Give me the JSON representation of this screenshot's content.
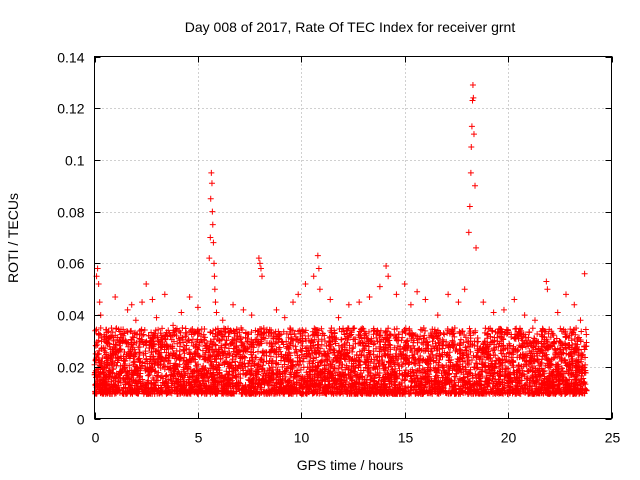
{
  "chart_data": {
    "type": "scatter",
    "title": "Day 008 of 2017, Rate Of TEC Index for receiver grnt",
    "xlabel": "GPS time / hours",
    "ylabel": "ROTI / TECUs",
    "xlim": [
      0,
      25
    ],
    "ylim": [
      0,
      0.14
    ],
    "xticks": [
      0,
      5,
      10,
      15,
      20,
      25
    ],
    "yticks": [
      0,
      0.02,
      0.04,
      0.06,
      0.08,
      0.1,
      0.12,
      0.14
    ],
    "xtick_labels": [
      "0",
      "5",
      "10",
      "15",
      "20",
      "25"
    ],
    "ytick_labels": [
      "0",
      "0.02",
      "0.04",
      "0.06",
      "0.08",
      "0.1",
      "0.12",
      "0.14"
    ],
    "grid": true,
    "marker": "+",
    "color": "#ff0000",
    "series": [
      {
        "name": "ROTI",
        "x": [
          0.1,
          0.15,
          0.2,
          0.25,
          0.3,
          0.3,
          1.0,
          1.6,
          1.8,
          2.0,
          2.3,
          2.5,
          2.8,
          3.0,
          3.4,
          3.8,
          4.2,
          4.6,
          5.0,
          5.55,
          5.6,
          5.62,
          5.65,
          5.68,
          5.7,
          5.72,
          5.75,
          5.78,
          5.8,
          5.82,
          5.85,
          5.9,
          6.2,
          6.7,
          7.2,
          7.6,
          7.95,
          8.0,
          8.05,
          8.1,
          8.8,
          9.2,
          9.6,
          9.85,
          10.2,
          10.6,
          10.8,
          10.85,
          10.9,
          11.4,
          11.8,
          12.3,
          12.8,
          13.3,
          13.8,
          14.1,
          14.2,
          14.6,
          15.0,
          15.3,
          15.6,
          16.0,
          16.6,
          17.1,
          17.6,
          17.9,
          18.1,
          18.15,
          18.2,
          18.22,
          18.25,
          18.28,
          18.3,
          18.32,
          18.35,
          18.4,
          18.45,
          18.8,
          19.3,
          19.8,
          20.3,
          20.8,
          21.3,
          21.85,
          21.9,
          22.4,
          22.8,
          23.2,
          23.5,
          23.7
        ],
        "y": [
          0.055,
          0.058,
          0.052,
          0.045,
          0.04,
          0.035,
          0.047,
          0.042,
          0.044,
          0.038,
          0.045,
          0.052,
          0.046,
          0.039,
          0.048,
          0.036,
          0.041,
          0.047,
          0.043,
          0.062,
          0.07,
          0.085,
          0.095,
          0.091,
          0.08,
          0.075,
          0.068,
          0.06,
          0.055,
          0.05,
          0.045,
          0.041,
          0.038,
          0.044,
          0.042,
          0.04,
          0.062,
          0.06,
          0.058,
          0.055,
          0.042,
          0.039,
          0.045,
          0.048,
          0.052,
          0.055,
          0.063,
          0.058,
          0.05,
          0.046,
          0.039,
          0.044,
          0.045,
          0.047,
          0.051,
          0.059,
          0.055,
          0.048,
          0.052,
          0.044,
          0.049,
          0.046,
          0.04,
          0.048,
          0.045,
          0.05,
          0.072,
          0.082,
          0.095,
          0.105,
          0.113,
          0.123,
          0.129,
          0.124,
          0.11,
          0.09,
          0.066,
          0.045,
          0.041,
          0.042,
          0.046,
          0.04,
          0.038,
          0.053,
          0.05,
          0.041,
          0.048,
          0.044,
          0.038,
          0.056
        ]
      }
    ],
    "band": {
      "name": "background ROTI level",
      "x_range": [
        0,
        23.8
      ],
      "typical_range": [
        0.005,
        0.035
      ]
    }
  }
}
